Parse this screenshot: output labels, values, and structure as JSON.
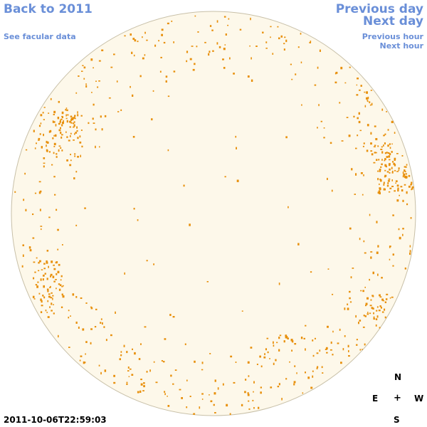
{
  "nav": {
    "back_label": "Back to 2011",
    "facular_label": "See facular data",
    "prev_day_label": "Previous day",
    "next_day_label": "Next day",
    "prev_hour_label": "Previous hour",
    "next_hour_label": "Next hour"
  },
  "timestamp": "2011-10-06T22:59:03",
  "compass": {
    "north": "N",
    "east": "E",
    "center": "+",
    "west": "W",
    "south": "S"
  },
  "colors": {
    "disk_fill": "#fdf8ea",
    "disk_stroke": "#c8c0a8",
    "facula": "#e8900c",
    "link": "#6a8fd8"
  },
  "image": {
    "subject": "solar-disk-faculae"
  }
}
